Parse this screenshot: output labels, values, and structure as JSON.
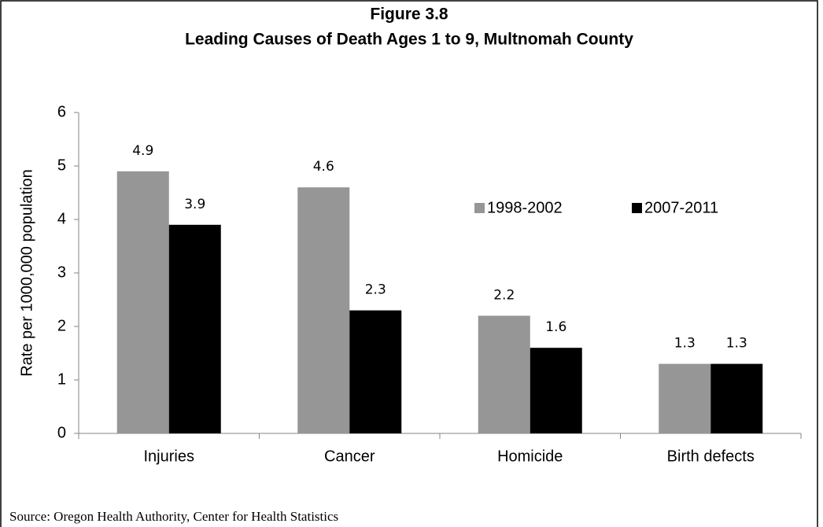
{
  "chart_data": {
    "type": "bar",
    "title": [
      "Figure 3.8",
      "Leading Causes of Death Ages 1 to 9, Multnomah County"
    ],
    "ylabel": "Rate per 1000,000 population",
    "categories": [
      "Injuries",
      "Cancer",
      "Homicide",
      "Birth defects"
    ],
    "series": [
      {
        "name": "1998-2002",
        "color": "#969696",
        "values": [
          4.9,
          4.6,
          2.2,
          1.3
        ]
      },
      {
        "name": "2007-2011",
        "color": "#000000",
        "values": [
          3.9,
          2.3,
          1.6,
          1.3
        ]
      }
    ],
    "ylim": [
      0,
      6
    ],
    "yticks": [
      0,
      1,
      2,
      3,
      4,
      5,
      6
    ],
    "grid": false,
    "legend": "upper right",
    "data_labels": true,
    "source": "Source: Oregon Health Authority, Center for Health Statistics"
  }
}
